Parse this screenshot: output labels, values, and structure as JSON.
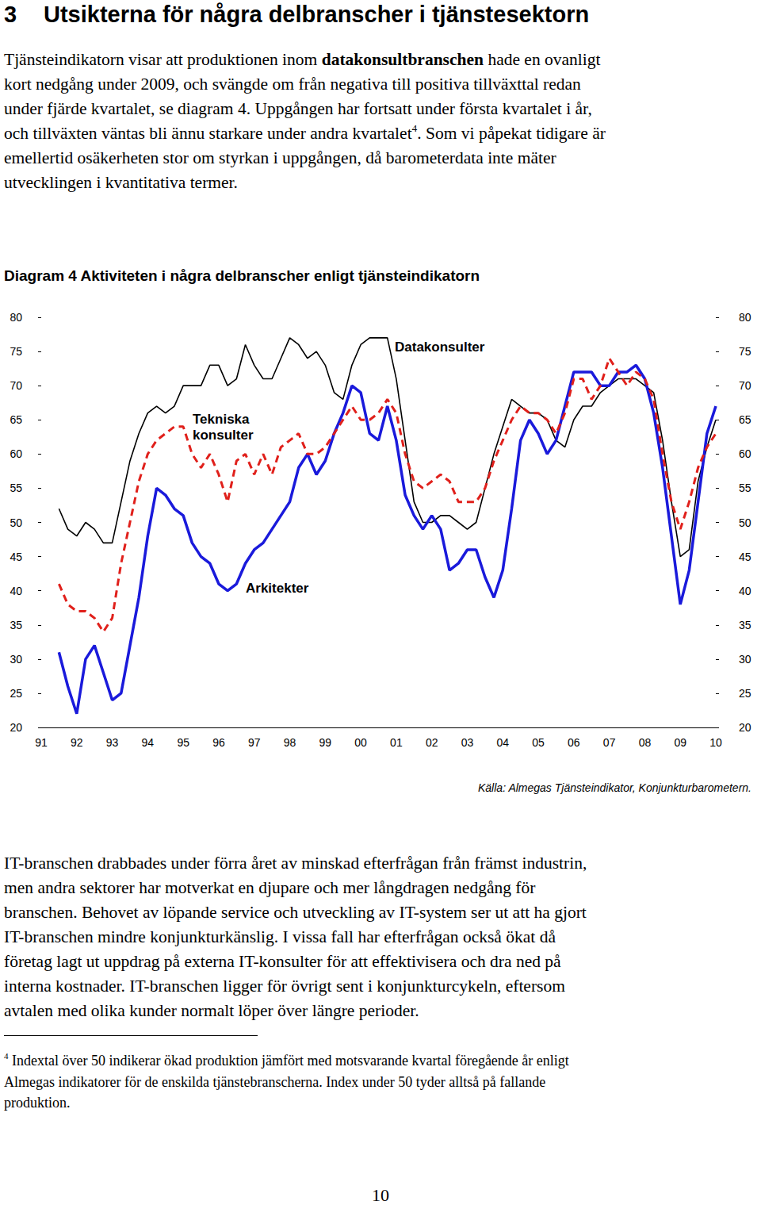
{
  "heading": {
    "number": "3",
    "title": "Utsikterna för några delbranscher i tjänstesektorn"
  },
  "intro": [
    [
      "Tjänsteindikatorn visar att produktionen inom ",
      {
        "text": "datakonsultbranschen",
        "bold": true
      },
      " hade en ovanligt"
    ],
    "kort nedgång under 2009, och svängde om från negativa till positiva tillväxttal redan",
    "under fjärde kvartalet, se diagram 4. Uppgången har fortsatt under första kvartalet i år,",
    [
      "och tillväxten väntas bli ännu starkare under andra kvartalet",
      {
        "text": "4",
        "sup": true
      },
      ". Som vi påpekat tidigare är"
    ],
    "emellertid osäkerheten stor om styrkan i uppgången, då barometerdata inte mäter",
    "utvecklingen i kvantitativa termer."
  ],
  "chart_data": {
    "type": "line",
    "title": "Diagram 4 Aktiviteten i några delbranscher enligt tjänsteindikatorn",
    "source": "Källa: Almegas Tjänsteindikator, Konjunkturbarometern.",
    "categories": [
      "91",
      null,
      null,
      null,
      "92",
      null,
      null,
      null,
      "93",
      null,
      null,
      null,
      "94",
      null,
      null,
      null,
      "95",
      null,
      null,
      null,
      "96",
      null,
      null,
      null,
      "97",
      null,
      null,
      null,
      "98",
      null,
      null,
      null,
      "99",
      null,
      null,
      null,
      "00",
      null,
      null,
      null,
      "01",
      null,
      null,
      null,
      "02",
      null,
      null,
      null,
      "03",
      null,
      null,
      null,
      "04",
      null,
      null,
      null,
      "05",
      null,
      null,
      null,
      "06",
      null,
      null,
      null,
      "07",
      null,
      null,
      null,
      "08",
      null,
      null,
      null,
      "09",
      null,
      null,
      null,
      "10"
    ],
    "series": [
      {
        "name": "Datakonsulter",
        "color": "#000000",
        "line_style": "solid",
        "marker": "none",
        "values": [
          null,
          null,
          52,
          49,
          48,
          50,
          49,
          47,
          47,
          53,
          59,
          63,
          66,
          67,
          66,
          67,
          70,
          70,
          70,
          73,
          73,
          70,
          71,
          76,
          73,
          71,
          71,
          74,
          77,
          76,
          74,
          75,
          73,
          69,
          68,
          73,
          76,
          77,
          77,
          77,
          71,
          62,
          53,
          50,
          50,
          51,
          51,
          50,
          49,
          50,
          55,
          60,
          64,
          68,
          67,
          66,
          66,
          65,
          62,
          61,
          65,
          67,
          67,
          69,
          70,
          71,
          71,
          71,
          70,
          69,
          62,
          53,
          45,
          46,
          56,
          61,
          65
        ]
      },
      {
        "name": "Tekniska konsulter",
        "color": "#e0201b",
        "line_style": "dashed",
        "marker": "none",
        "values": [
          null,
          null,
          41,
          38,
          37,
          37,
          36,
          34,
          36,
          44,
          50,
          56,
          60,
          62,
          63,
          64,
          64,
          60,
          58,
          60,
          57,
          53,
          59,
          60,
          57,
          60,
          57,
          61,
          62,
          63,
          60,
          60,
          61,
          63,
          65,
          67,
          65,
          65,
          66,
          68,
          66,
          60,
          56,
          55,
          56,
          57,
          56,
          53,
          53,
          53,
          55,
          59,
          62,
          65,
          67,
          66,
          66,
          65,
          63,
          66,
          71,
          71,
          68,
          70,
          74,
          72,
          70,
          72,
          71,
          68,
          60,
          53,
          49,
          53,
          58,
          61,
          63
        ]
      },
      {
        "name": "Arkitekter",
        "color": "#1a1adb",
        "line_style": "solid",
        "marker": "none",
        "values": [
          null,
          null,
          31,
          26,
          22,
          30,
          32,
          28,
          24,
          25,
          32,
          39,
          48,
          55,
          54,
          52,
          51,
          47,
          45,
          44,
          41,
          40,
          41,
          44,
          46,
          47,
          49,
          51,
          53,
          58,
          60,
          57,
          59,
          63,
          66,
          70,
          69,
          63,
          62,
          67,
          62,
          54,
          51,
          49,
          51,
          49,
          43,
          44,
          46,
          46,
          42,
          39,
          43,
          52,
          62,
          65,
          63,
          60,
          62,
          67,
          72,
          72,
          72,
          70,
          70,
          72,
          72,
          73,
          71,
          66,
          58,
          48,
          38,
          43,
          53,
          63,
          67
        ]
      }
    ],
    "ylim": [
      20,
      80
    ],
    "yticks": [
      20,
      25,
      30,
      35,
      40,
      45,
      50,
      55,
      60,
      65,
      70,
      75,
      80
    ],
    "grid": false
  },
  "body": [
    "IT-branschen drabbades under förra året av minskad efterfrågan från främst industrin,",
    "men andra sektorer har motverkat en djupare och mer långdragen nedgång för",
    "branschen. Behovet av löpande service och utveckling av IT-system ser ut att ha gjort",
    "IT-branschen mindre konjunkturkänslig. I vissa fall har efterfrågan också ökat då",
    "företag lagt ut uppdrag på externa IT-konsulter för att effektivisera och dra ned på",
    "interna kostnader. IT-branschen ligger för övrigt sent i konjunkturcykeln, eftersom",
    "avtalen med olika kunder normalt löper över längre perioder."
  ],
  "footnote": {
    "mark": "4",
    "lines": [
      "Indextal över 50 indikerar ökad produktion jämfört med motsvarande kvartal föregående år enligt",
      "Almegas indikatorer för de enskilda tjänstebranscherna. Index under 50 tyder alltså på fallande",
      "produktion."
    ]
  },
  "page_number": "10"
}
